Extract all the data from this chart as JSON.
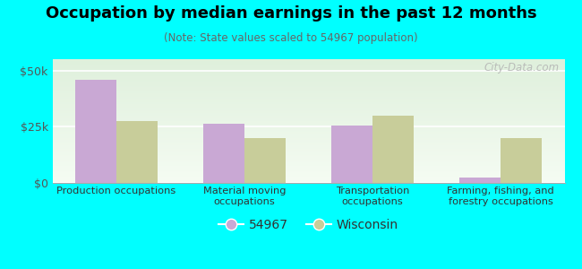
{
  "title": "Occupation by median earnings in the past 12 months",
  "subtitle": "(Note: State values scaled to 54967 population)",
  "categories": [
    "Production occupations",
    "Material moving\noccupations",
    "Transportation\noccupations",
    "Farming, fishing, and\nforestry occupations"
  ],
  "values_54967": [
    46000,
    26500,
    25500,
    2500
  ],
  "values_wisconsin": [
    27500,
    20000,
    30000,
    20000
  ],
  "color_54967": "#c9a8d4",
  "color_wisconsin": "#c8cd9a",
  "background_color": "#00ffff",
  "ylim": [
    0,
    55000
  ],
  "yticks": [
    0,
    25000,
    50000
  ],
  "ytick_labels": [
    "$0",
    "$25k",
    "$50k"
  ],
  "legend_labels": [
    "54967",
    "Wisconsin"
  ],
  "watermark": "City-Data.com",
  "title_fontsize": 13,
  "subtitle_fontsize": 8.5
}
